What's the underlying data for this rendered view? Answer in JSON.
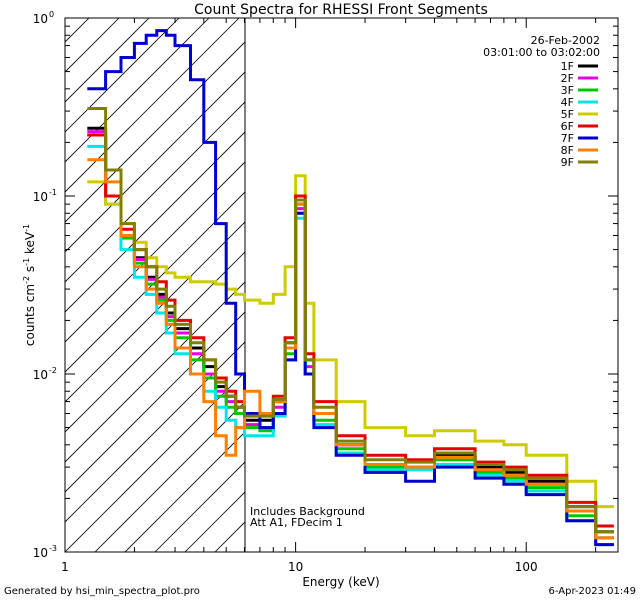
{
  "chart_data": {
    "type": "line",
    "title": "Count Spectra for RHESSI Front Segments",
    "xlabel": "Energy (keV)",
    "ylabel_parts": [
      "counts cm",
      "-2",
      " s",
      "-1",
      " keV",
      "-1"
    ],
    "xscale": "log",
    "yscale": "log",
    "xlim": [
      1,
      250
    ],
    "ylim": [
      0.001,
      1
    ],
    "xticks": [
      {
        "value": 1,
        "label": "1"
      },
      {
        "value": 10,
        "label": "10"
      },
      {
        "value": 100,
        "label": "100"
      }
    ],
    "yticks": [
      {
        "value": 1,
        "base": "10",
        "exp": "0"
      },
      {
        "value": 0.1,
        "base": "10",
        "exp": "-1"
      },
      {
        "value": 0.01,
        "base": "10",
        "exp": "-2"
      },
      {
        "value": 0.001,
        "base": "10",
        "exp": "-3"
      }
    ],
    "date": "26-Feb-2002",
    "time_range": "03:01:00 to 03:02:00",
    "annotations": [
      "Includes Background",
      "Att A1, FDecim 1"
    ],
    "hatched_region_keV": [
      1,
      6
    ],
    "series": [
      {
        "name": "1F",
        "color": "#000000",
        "x": [
          1.25,
          1.5,
          1.75,
          2.0,
          2.25,
          2.5,
          2.75,
          3.0,
          3.5,
          4.0,
          4.5,
          5.0,
          5.5,
          6.0,
          7.0,
          8.0,
          9.0,
          10.0,
          11.0,
          12.0,
          15.0,
          20.0,
          30.0,
          40.0,
          60.0,
          80.0,
          100.0,
          150.0,
          200.0
        ],
        "values": [
          0.24,
          0.1,
          0.06,
          0.045,
          0.035,
          0.028,
          0.022,
          0.018,
          0.014,
          0.011,
          0.0085,
          0.0075,
          0.0065,
          0.0055,
          0.0055,
          0.007,
          0.015,
          0.09,
          0.012,
          0.006,
          0.004,
          0.003,
          0.003,
          0.0035,
          0.003,
          0.0028,
          0.0025,
          0.0018,
          0.0013
        ]
      },
      {
        "name": "2F",
        "color": "#e600e6",
        "x": [
          1.25,
          1.5,
          1.75,
          2.0,
          2.25,
          2.5,
          2.75,
          3.0,
          3.5,
          4.0,
          4.5,
          5.0,
          5.5,
          6.0,
          7.0,
          8.0,
          9.0,
          10.0,
          11.0,
          12.0,
          15.0,
          20.0,
          30.0,
          40.0,
          60.0,
          80.0,
          100.0,
          150.0,
          200.0
        ],
        "values": [
          0.23,
          0.1,
          0.06,
          0.044,
          0.034,
          0.027,
          0.021,
          0.017,
          0.013,
          0.01,
          0.008,
          0.007,
          0.006,
          0.0052,
          0.005,
          0.0065,
          0.014,
          0.085,
          0.011,
          0.006,
          0.004,
          0.0031,
          0.003,
          0.0034,
          0.0029,
          0.0027,
          0.0024,
          0.0017,
          0.0012
        ]
      },
      {
        "name": "3F",
        "color": "#00c800",
        "x": [
          1.25,
          1.5,
          1.75,
          2.0,
          2.25,
          2.5,
          2.75,
          3.0,
          3.5,
          4.0,
          4.5,
          5.0,
          5.5,
          6.0,
          7.0,
          8.0,
          9.0,
          10.0,
          11.0,
          12.0,
          15.0,
          20.0,
          30.0,
          40.0,
          60.0,
          80.0,
          100.0,
          150.0,
          200.0
        ],
        "values": [
          0.22,
          0.1,
          0.058,
          0.042,
          0.032,
          0.026,
          0.02,
          0.016,
          0.012,
          0.0095,
          0.0075,
          0.0065,
          0.006,
          0.005,
          0.0048,
          0.006,
          0.013,
          0.08,
          0.01,
          0.0055,
          0.0038,
          0.003,
          0.003,
          0.0033,
          0.0028,
          0.0026,
          0.0023,
          0.0016,
          0.0012
        ]
      },
      {
        "name": "4F",
        "color": "#00e6e6",
        "x": [
          1.25,
          1.5,
          1.75,
          2.0,
          2.25,
          2.5,
          2.75,
          3.0,
          3.5,
          4.0,
          4.5,
          5.0,
          5.5,
          6.0,
          7.0,
          8.0,
          9.0,
          10.0,
          11.0,
          12.0,
          15.0,
          20.0,
          30.0,
          40.0,
          60.0,
          80.0,
          100.0,
          150.0,
          200.0
        ],
        "values": [
          0.19,
          0.09,
          0.05,
          0.035,
          0.028,
          0.022,
          0.017,
          0.013,
          0.01,
          0.008,
          0.0065,
          0.0055,
          0.005,
          0.0045,
          0.0045,
          0.0058,
          0.012,
          0.075,
          0.01,
          0.0052,
          0.0036,
          0.0029,
          0.0029,
          0.0031,
          0.0027,
          0.0025,
          0.0022,
          0.0015,
          0.0011
        ]
      },
      {
        "name": "5F",
        "color": "#cccc00",
        "x": [
          1.25,
          1.5,
          1.75,
          2.0,
          2.25,
          2.5,
          2.75,
          3.0,
          3.5,
          4.0,
          4.5,
          5.0,
          5.5,
          6.0,
          7.0,
          8.0,
          9.0,
          10.0,
          11.0,
          12.0,
          15.0,
          20.0,
          30.0,
          40.0,
          60.0,
          80.0,
          100.0,
          150.0,
          200.0
        ],
        "values": [
          0.12,
          0.09,
          0.07,
          0.055,
          0.045,
          0.04,
          0.037,
          0.035,
          0.033,
          0.033,
          0.032,
          0.03,
          0.028,
          0.026,
          0.025,
          0.028,
          0.04,
          0.13,
          0.025,
          0.012,
          0.007,
          0.005,
          0.0045,
          0.0048,
          0.0042,
          0.004,
          0.0035,
          0.0025,
          0.0018
        ]
      },
      {
        "name": "6F",
        "color": "#e60000",
        "x": [
          1.25,
          1.5,
          1.75,
          2.0,
          2.25,
          2.5,
          2.75,
          3.0,
          3.5,
          4.0,
          4.5,
          5.0,
          5.5,
          6.0,
          7.0,
          8.0,
          9.0,
          10.0,
          11.0,
          12.0,
          15.0,
          20.0,
          30.0,
          40.0,
          60.0,
          80.0,
          100.0,
          150.0,
          200.0
        ],
        "values": [
          0.22,
          0.1,
          0.065,
          0.05,
          0.04,
          0.033,
          0.026,
          0.02,
          0.016,
          0.012,
          0.0095,
          0.008,
          0.007,
          0.006,
          0.006,
          0.0075,
          0.016,
          0.1,
          0.013,
          0.007,
          0.0045,
          0.0035,
          0.0033,
          0.0038,
          0.0032,
          0.003,
          0.0027,
          0.0019,
          0.0014
        ]
      },
      {
        "name": "7F",
        "color": "#0000cc",
        "x": [
          1.25,
          1.5,
          1.75,
          2.0,
          2.25,
          2.5,
          2.75,
          3.0,
          3.5,
          4.0,
          4.5,
          5.0,
          5.5,
          6.0,
          7.0,
          8.0,
          9.0,
          10.0,
          11.0,
          12.0,
          15.0,
          20.0,
          30.0,
          40.0,
          60.0,
          80.0,
          100.0,
          150.0,
          200.0
        ],
        "values": [
          0.4,
          0.5,
          0.6,
          0.72,
          0.8,
          0.85,
          0.8,
          0.7,
          0.45,
          0.2,
          0.07,
          0.025,
          0.01,
          0.006,
          0.005,
          0.006,
          0.012,
          0.08,
          0.01,
          0.005,
          0.0035,
          0.0028,
          0.0025,
          0.003,
          0.0026,
          0.0024,
          0.0021,
          0.0015,
          0.0011
        ]
      },
      {
        "name": "8F",
        "color": "#ff8000",
        "x": [
          1.25,
          1.5,
          1.75,
          2.0,
          2.25,
          2.5,
          2.75,
          3.0,
          3.5,
          4.0,
          4.5,
          5.0,
          5.5,
          6.0,
          7.0,
          8.0,
          9.0,
          10.0,
          11.0,
          12.0,
          15.0,
          20.0,
          30.0,
          40.0,
          60.0,
          80.0,
          100.0,
          150.0,
          200.0
        ],
        "values": [
          0.16,
          0.12,
          0.06,
          0.04,
          0.03,
          0.025,
          0.019,
          0.014,
          0.01,
          0.007,
          0.0045,
          0.0035,
          0.005,
          0.008,
          0.006,
          0.007,
          0.014,
          0.09,
          0.012,
          0.006,
          0.004,
          0.0031,
          0.003,
          0.0034,
          0.0029,
          0.0027,
          0.0024,
          0.0017,
          0.0012
        ]
      },
      {
        "name": "9F",
        "color": "#808000",
        "x": [
          1.25,
          1.5,
          1.75,
          2.0,
          2.25,
          2.5,
          2.75,
          3.0,
          3.5,
          4.0,
          4.5,
          5.0,
          5.5,
          6.0,
          7.0,
          8.0,
          9.0,
          10.0,
          11.0,
          12.0,
          15.0,
          20.0,
          30.0,
          40.0,
          60.0,
          80.0,
          100.0,
          150.0,
          200.0
        ],
        "values": [
          0.31,
          0.14,
          0.07,
          0.05,
          0.04,
          0.03,
          0.024,
          0.019,
          0.015,
          0.012,
          0.009,
          0.0075,
          0.0065,
          0.0058,
          0.0058,
          0.0072,
          0.015,
          0.095,
          0.012,
          0.0065,
          0.0042,
          0.0033,
          0.0032,
          0.0036,
          0.0031,
          0.0029,
          0.0026,
          0.0018,
          0.0013
        ]
      }
    ]
  },
  "footer": {
    "left": "Generated by hsi_min_spectra_plot.pro",
    "right": "6-Apr-2023 01:49"
  }
}
